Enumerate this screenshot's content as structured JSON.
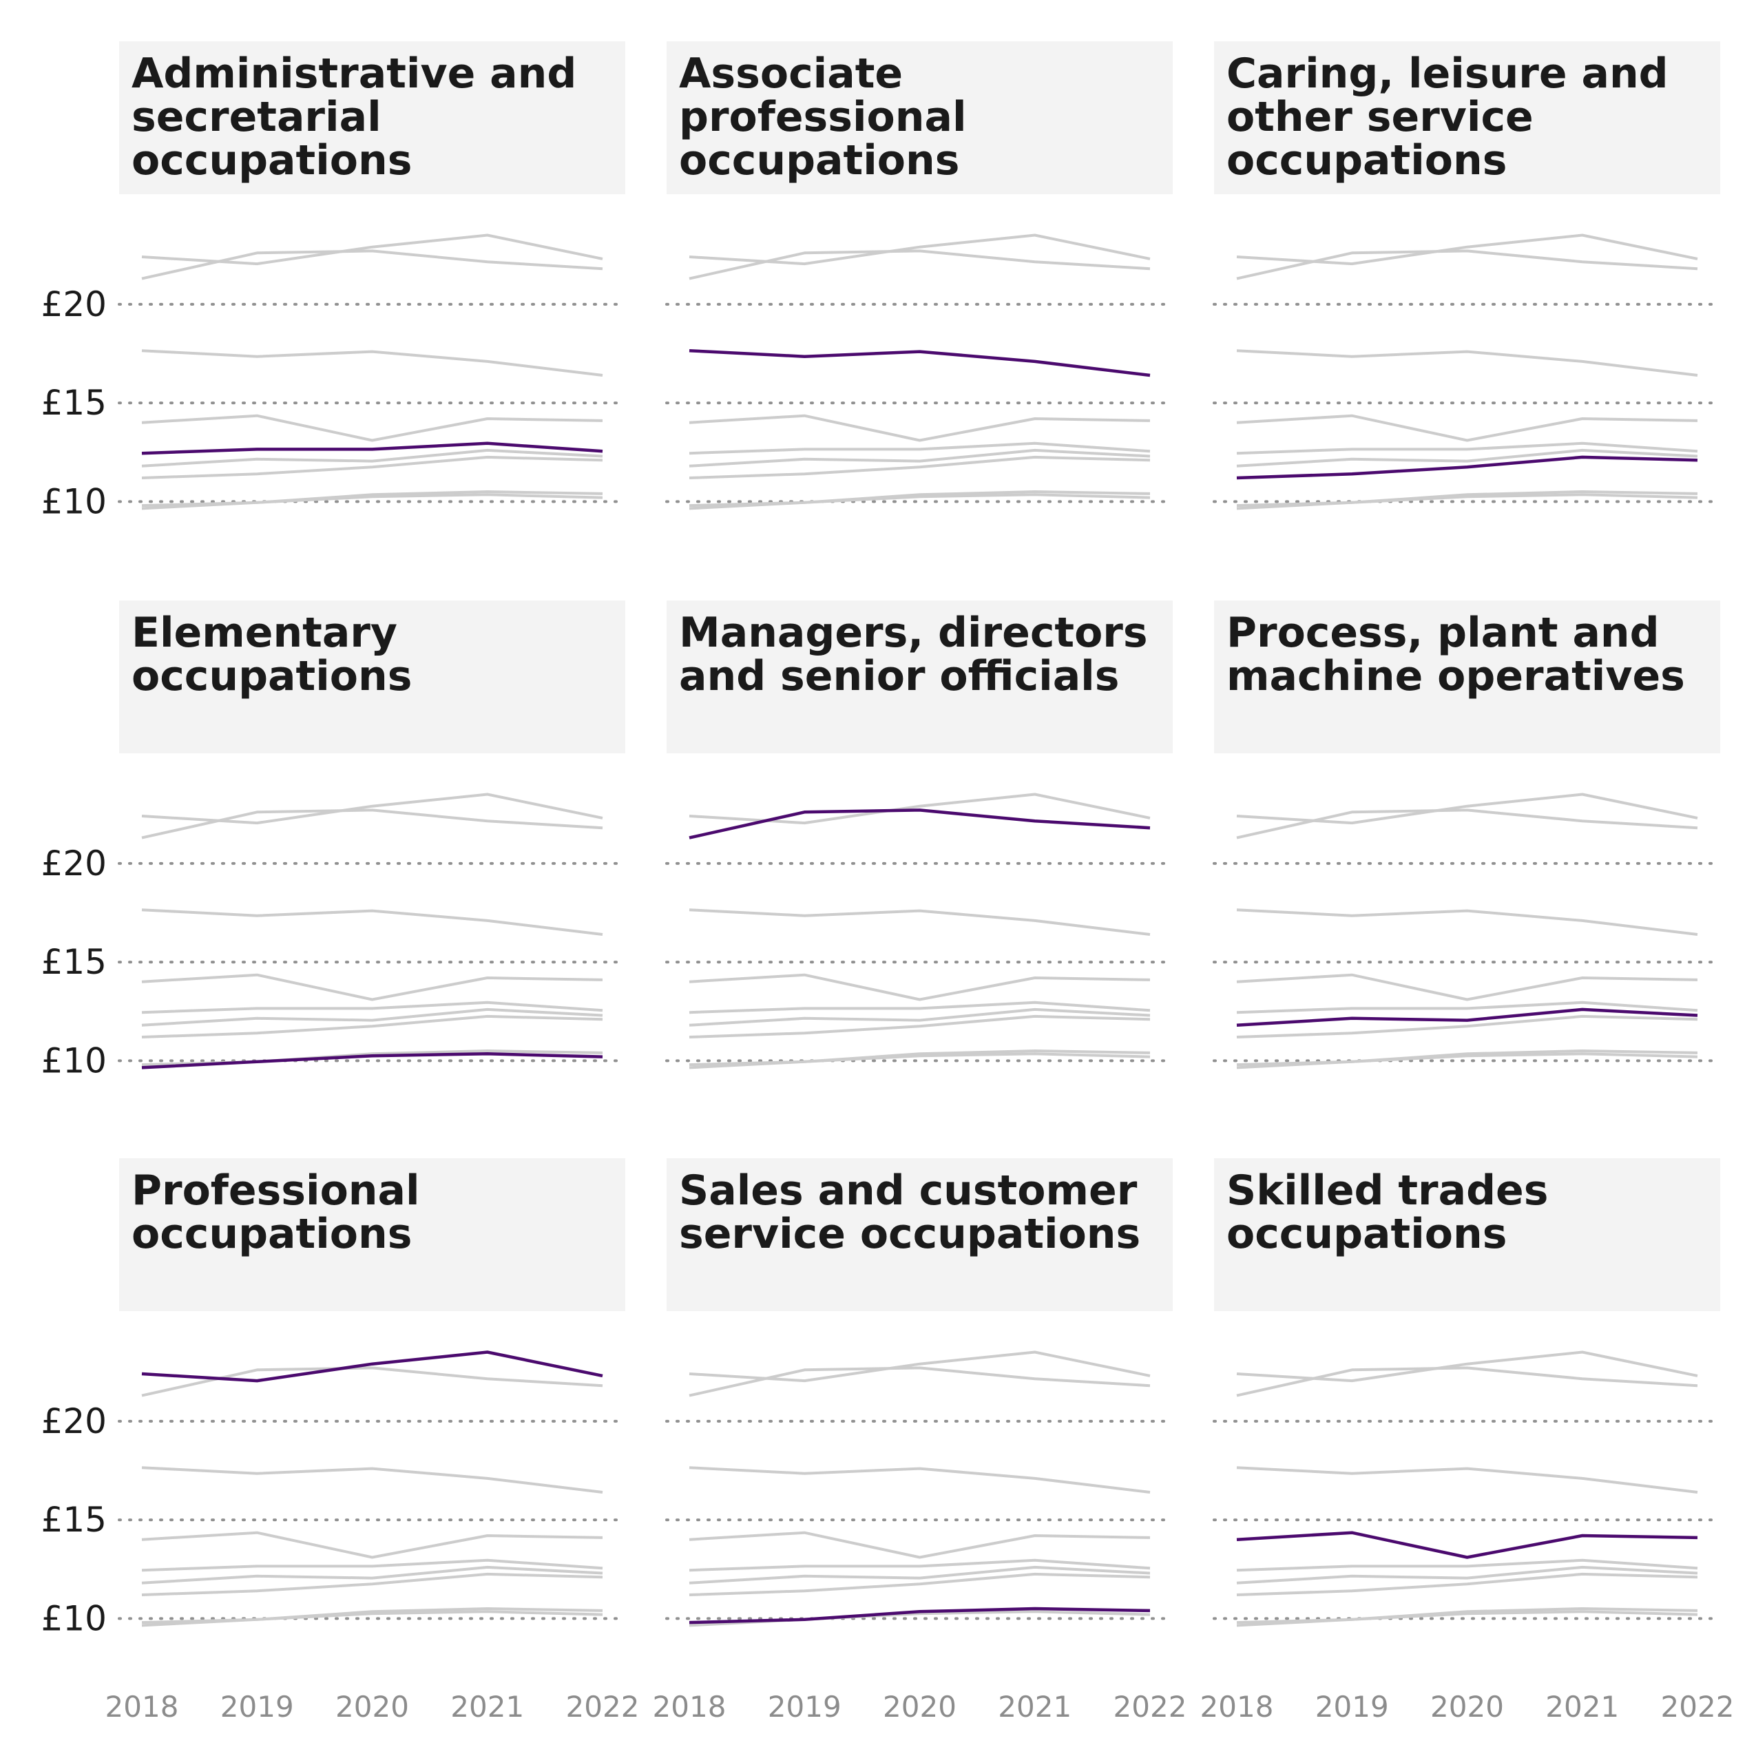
{
  "chart_data": {
    "type": "line",
    "layout": "small-multiples",
    "x": [
      2018,
      2019,
      2020,
      2021,
      2022
    ],
    "x_tick_labels": [
      "2018",
      "2019",
      "2020",
      "2021",
      "2022"
    ],
    "y_ticks": [
      10,
      15,
      20
    ],
    "y_tick_labels": [
      "£10",
      "£15",
      "£20"
    ],
    "ylim": [
      7.5,
      24.6
    ],
    "grid": "horizontal dotted",
    "series": [
      {
        "name": "Administrative and secretarial occupations",
        "title_lines": [
          "Administrative and",
          "secretarial",
          "occupations"
        ],
        "values": [
          12.45,
          12.65,
          12.65,
          12.95,
          12.55
        ]
      },
      {
        "name": "Associate professional occupations",
        "title_lines": [
          "Associate",
          "professional",
          "occupations"
        ],
        "values": [
          17.65,
          17.35,
          17.6,
          17.1,
          16.4
        ]
      },
      {
        "name": "Caring, leisure and other service occupations",
        "title_lines": [
          "Caring, leisure and",
          "other service",
          "occupations"
        ],
        "values": [
          11.2,
          11.4,
          11.75,
          12.25,
          12.1
        ]
      },
      {
        "name": "Elementary occupations",
        "title_lines": [
          "Elementary",
          "occupations"
        ],
        "values": [
          9.65,
          9.95,
          10.25,
          10.35,
          10.2
        ]
      },
      {
        "name": "Managers, directors and senior officials",
        "title_lines": [
          "Managers, directors",
          "and senior officials"
        ],
        "values": [
          21.3,
          22.6,
          22.7,
          22.15,
          21.8
        ]
      },
      {
        "name": "Process, plant and machine operatives",
        "title_lines": [
          "Process, plant and",
          "machine operatives"
        ],
        "values": [
          11.8,
          12.15,
          12.05,
          12.6,
          12.3
        ]
      },
      {
        "name": "Professional occupations",
        "title_lines": [
          "Professional",
          "occupations"
        ],
        "values": [
          22.4,
          22.05,
          22.9,
          23.5,
          22.3
        ]
      },
      {
        "name": "Sales and customer service occupations",
        "title_lines": [
          "Sales and customer",
          "service occupations"
        ],
        "values": [
          9.8,
          9.95,
          10.35,
          10.5,
          10.4
        ]
      },
      {
        "name": "Skilled trades occupations",
        "title_lines": [
          "Skilled trades",
          "occupations"
        ],
        "values": [
          14.0,
          14.35,
          13.1,
          14.2,
          14.1
        ]
      }
    ],
    "colors": {
      "highlight": "#4b0a6e",
      "others": "#cccccc",
      "strip": "#f3f3f3",
      "grid": "#909090"
    }
  }
}
